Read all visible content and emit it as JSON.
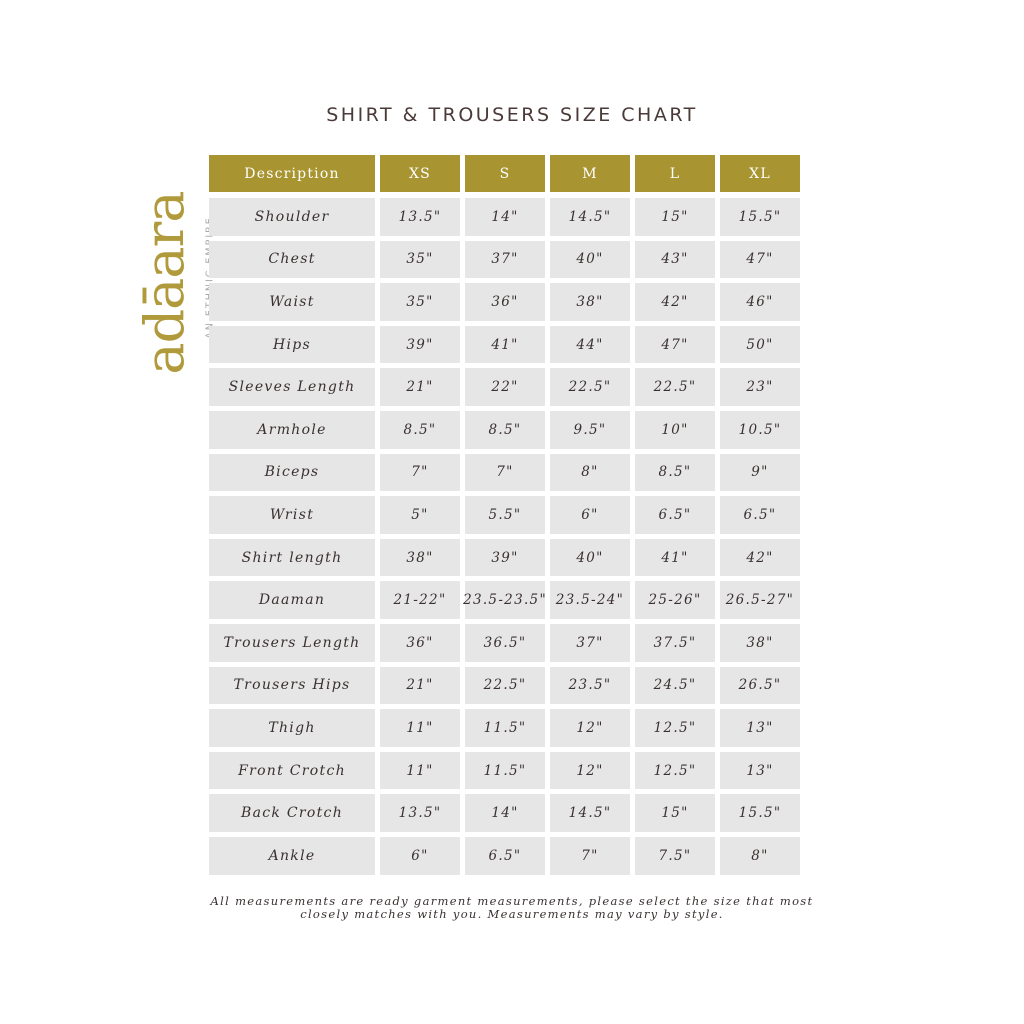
{
  "title": "SHIRT & TROUSERS SIZE CHART",
  "logo": {
    "wordmark": "adāara",
    "tagline": "AN ETHNIC EMPIRE"
  },
  "colors": {
    "header": "#a89531",
    "cell": "#e6e6e6",
    "text": "#3a3030"
  },
  "table": {
    "headers": [
      "Description",
      "XS",
      "S",
      "M",
      "L",
      "XL"
    ],
    "rows": [
      [
        "Shoulder",
        "13.5\"",
        "14\"",
        "14.5\"",
        "15\"",
        "15.5\""
      ],
      [
        "Chest",
        "35\"",
        "37\"",
        "40\"",
        "43\"",
        "47\""
      ],
      [
        "Waist",
        "35\"",
        "36\"",
        "38\"",
        "42\"",
        "46\""
      ],
      [
        "Hips",
        "39\"",
        "41\"",
        "44\"",
        "47\"",
        "50\""
      ],
      [
        "Sleeves Length",
        "21\"",
        "22\"",
        "22.5\"",
        "22.5\"",
        "23\""
      ],
      [
        "Armhole",
        "8.5\"",
        "8.5\"",
        "9.5\"",
        "10\"",
        "10.5\""
      ],
      [
        "Biceps",
        "7\"",
        "7\"",
        "8\"",
        "8.5\"",
        "9\""
      ],
      [
        "Wrist",
        "5\"",
        "5.5\"",
        "6\"",
        "6.5\"",
        "6.5\""
      ],
      [
        "Shirt length",
        "38\"",
        "39\"",
        "40\"",
        "41\"",
        "42\""
      ],
      [
        "Daaman",
        "21-22\"",
        "23.5-23.5\"",
        "23.5-24\"",
        "25-26\"",
        "26.5-27\""
      ],
      [
        "Trousers Length",
        "36\"",
        "36.5\"",
        "37\"",
        "37.5\"",
        "38\""
      ],
      [
        "Trousers Hips",
        "21\"",
        "22.5\"",
        "23.5\"",
        "24.5\"",
        "26.5\""
      ],
      [
        "Thigh",
        "11\"",
        "11.5\"",
        "12\"",
        "12.5\"",
        "13\""
      ],
      [
        "Front Crotch",
        "11\"",
        "11.5\"",
        "12\"",
        "12.5\"",
        "13\""
      ],
      [
        "Back Crotch",
        "13.5\"",
        "14\"",
        "14.5\"",
        "15\"",
        "15.5\""
      ],
      [
        "Ankle",
        "6\"",
        "6.5\"",
        "7\"",
        "7.5\"",
        "8\""
      ]
    ]
  },
  "note": {
    "line1": "All measurements are ready garment measurements, please select the size that most",
    "line2": "closely matches with you. Measurements may vary by style."
  }
}
